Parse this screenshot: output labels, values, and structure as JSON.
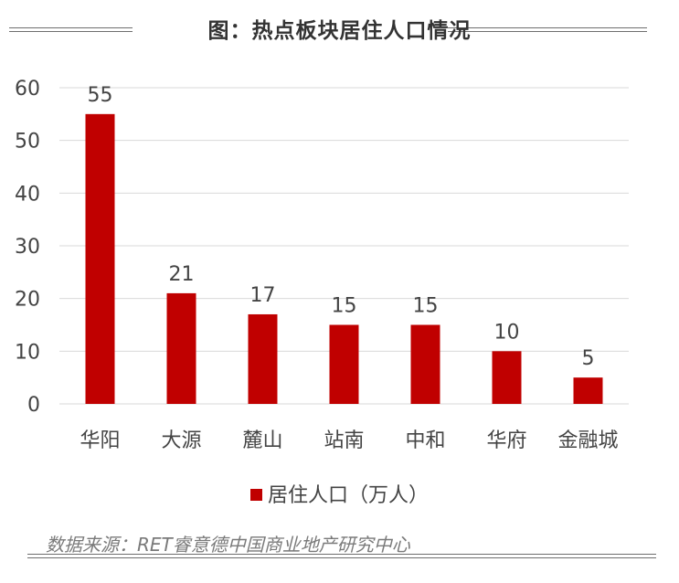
{
  "chart_data": {
    "type": "bar",
    "title": "图：热点板块居住人口情况",
    "categories": [
      "华阳",
      "大源",
      "麓山",
      "站南",
      "中和",
      "华府",
      "金融城"
    ],
    "series": [
      {
        "name": "居住人口（万人）",
        "values": [
          55,
          21,
          17,
          15,
          15,
          10,
          5
        ],
        "color": "#C00000"
      }
    ],
    "yticks": [
      "0",
      "10",
      "20",
      "30",
      "40",
      "50",
      "60"
    ],
    "ylim": [
      0,
      60
    ],
    "grid": true,
    "legend_position": "bottom",
    "source": "数据来源：RET睿意德中国商业地产研究中心"
  }
}
